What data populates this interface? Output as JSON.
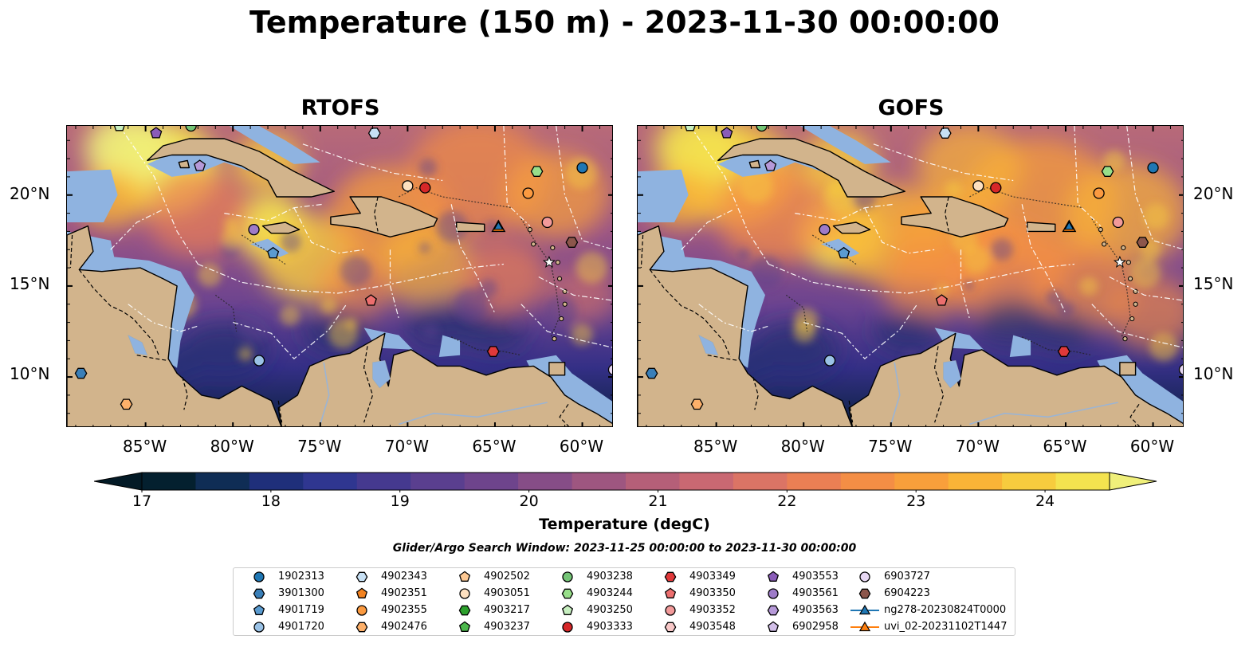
{
  "title": "Temperature (150 m) - 2023-11-30 00:00:00",
  "panels": [
    {
      "title": "RTOFS"
    },
    {
      "title": "GOFS"
    }
  ],
  "x_ticks": [
    "85°W",
    "80°W",
    "75°W",
    "70°W",
    "65°W",
    "60°W"
  ],
  "y_ticks": [
    "20°N",
    "15°N",
    "10°N"
  ],
  "extent": {
    "lon": [
      -89.5,
      -58.2
    ],
    "lat": [
      7.2,
      23.8
    ]
  },
  "colorbar": {
    "label": "Temperature (degC)",
    "ticks": [
      "17",
      "18",
      "19",
      "20",
      "21",
      "22",
      "23",
      "24"
    ],
    "range": [
      17,
      24.5
    ],
    "colors": [
      "#04202f",
      "#0f2d55",
      "#1f2f7a",
      "#2f3690",
      "#45398f",
      "#5a3f8f",
      "#6e448c",
      "#864d87",
      "#9e5680",
      "#b55f78",
      "#c96872",
      "#db7465",
      "#ea7f54",
      "#f48e45",
      "#f89f3b",
      "#f9b437",
      "#f7cc3e",
      "#f4e34f"
    ],
    "over_color": "#f0f07a",
    "under_color": "#031a26"
  },
  "search_window": "Glider/Argo Search Window: 2023-11-25 00:00:00 to 2023-11-30 00:00:00",
  "legend": [
    {
      "label": "1902313",
      "marker": "circle",
      "color": "#1f77b4"
    },
    {
      "label": "3901300",
      "marker": "hexagon",
      "color": "#3a7fb8"
    },
    {
      "label": "4901719",
      "marker": "pentagon",
      "color": "#5a9bd0"
    },
    {
      "label": "4901720",
      "marker": "circle",
      "color": "#9ac2e6"
    },
    {
      "label": "4902343",
      "marker": "hexagon",
      "color": "#c7e0f4"
    },
    {
      "label": "4902351",
      "marker": "pentagon",
      "color": "#f28220"
    },
    {
      "label": "4902355",
      "marker": "circle",
      "color": "#fb9a40"
    },
    {
      "label": "4902476",
      "marker": "hexagon",
      "color": "#fdb06a"
    },
    {
      "label": "4902502",
      "marker": "pentagon",
      "color": "#fdc893"
    },
    {
      "label": "4903051",
      "marker": "circle",
      "color": "#fde0c0"
    },
    {
      "label": "4903217",
      "marker": "hexagon",
      "color": "#2ca02c"
    },
    {
      "label": "4903237",
      "marker": "pentagon",
      "color": "#4cb84c"
    },
    {
      "label": "4903238",
      "marker": "circle",
      "color": "#74c476"
    },
    {
      "label": "4903244",
      "marker": "hexagon",
      "color": "#98df8a"
    },
    {
      "label": "4903250",
      "marker": "pentagon",
      "color": "#c7efc0"
    },
    {
      "label": "4903333",
      "marker": "circle",
      "color": "#d62728"
    },
    {
      "label": "4903349",
      "marker": "hexagon",
      "color": "#e0393a"
    },
    {
      "label": "4903350",
      "marker": "pentagon",
      "color": "#ec6e6e"
    },
    {
      "label": "4903352",
      "marker": "circle",
      "color": "#f29a9a"
    },
    {
      "label": "4903548",
      "marker": "hexagon",
      "color": "#f8c8c8"
    },
    {
      "label": "4903553",
      "marker": "pentagon",
      "color": "#8a5cb8"
    },
    {
      "label": "4903561",
      "marker": "circle",
      "color": "#9e7bc8"
    },
    {
      "label": "4903563",
      "marker": "hexagon",
      "color": "#b699d8"
    },
    {
      "label": "6902958",
      "marker": "pentagon",
      "color": "#d2bfe8"
    },
    {
      "label": "6903727",
      "marker": "circle",
      "color": "#e8d8f4"
    },
    {
      "label": "6904223",
      "marker": "hexagon",
      "color": "#8c564b"
    },
    {
      "label": "ng278-20230824T0000",
      "marker": "triangle-line",
      "color": "#1f77b4"
    },
    {
      "label": "uvi_02-20231102T1447",
      "marker": "triangle-line",
      "color": "#ff7f0e"
    }
  ]
}
